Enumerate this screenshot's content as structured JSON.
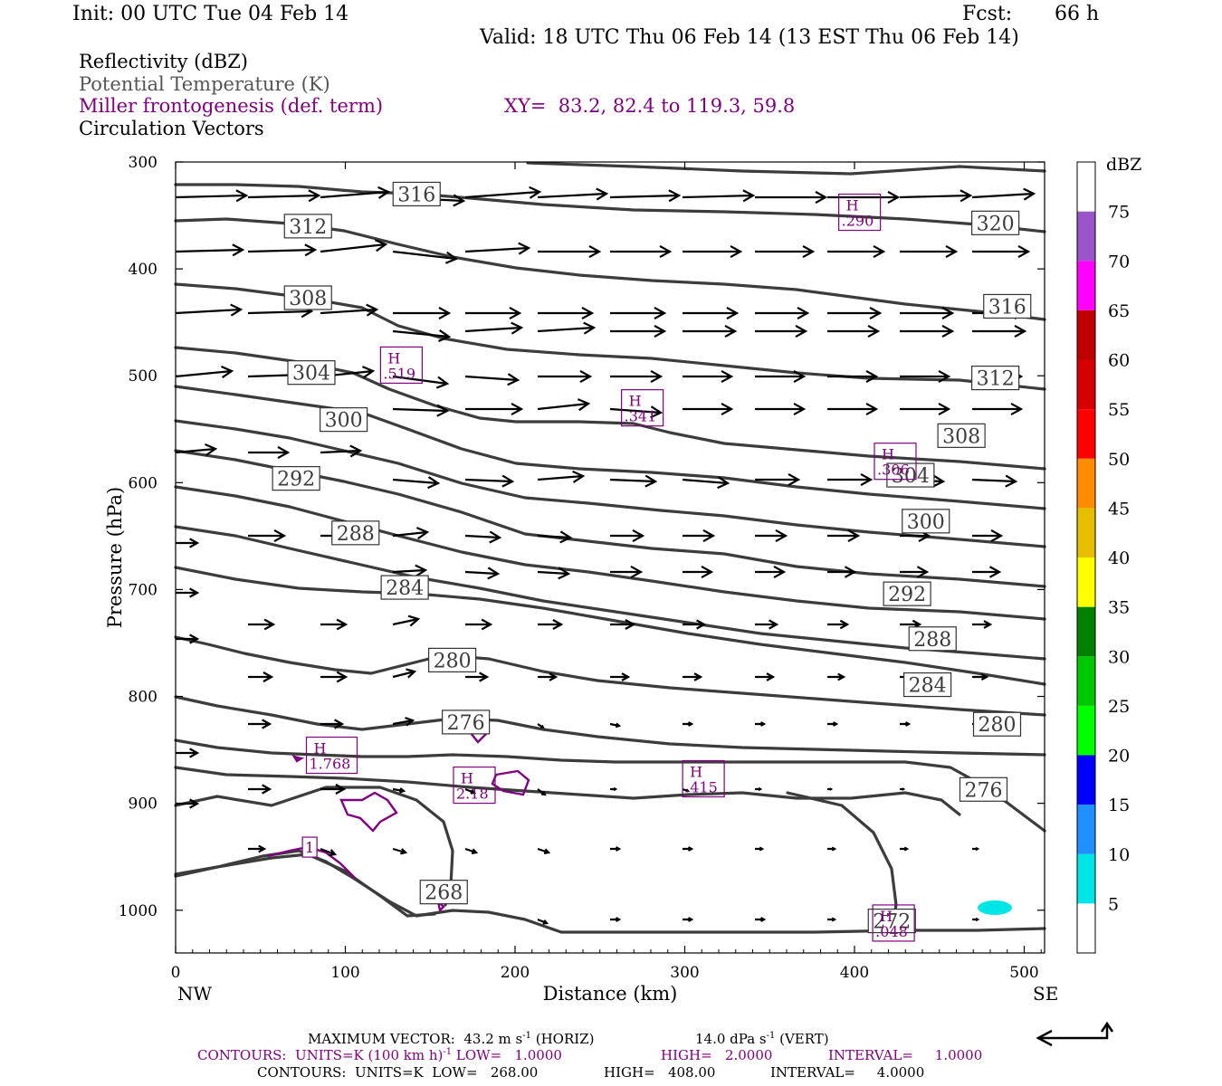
{
  "header": {
    "init": "Init: 00 UTC Tue 04 Feb 14",
    "fcst_label": "Fcst:",
    "fcst_value": "66 h",
    "valid": "Valid: 18 UTC Thu 06 Feb 14 (13 EST Thu 06 Feb 14)",
    "field1": "Reflectivity (dBZ)",
    "field2": "Potential Temperature (K)",
    "field3": "Miller frontogenesis (def. term)",
    "xy": "XY=  83.2, 82.4 to 119.3, 59.8",
    "field4": "Circulation Vectors"
  },
  "colors": {
    "theta": "#3c3c3c",
    "fronto": "#800080",
    "refl_dbz5": "#00e5e5",
    "arrow": "#000000"
  },
  "chart_data": {
    "type": "cross-section",
    "xlabel": "Distance (km)",
    "ylabel": "Pressure (hPa)",
    "xlim": [
      0,
      512
    ],
    "ylim": [
      1040,
      300
    ],
    "x_ticks": [
      0,
      100,
      200,
      300,
      400,
      500
    ],
    "y_ticks": [
      300,
      400,
      500,
      600,
      700,
      800,
      900,
      1000
    ],
    "x_left_label": "NW",
    "x_right_label": "SE",
    "theta_labels": [
      {
        "text": "316",
        "x": 142,
        "p": 330
      },
      {
        "text": "312",
        "x": 78,
        "p": 360
      },
      {
        "text": "308",
        "x": 78,
        "p": 427
      },
      {
        "text": "304",
        "x": 80,
        "p": 497
      },
      {
        "text": "300",
        "x": 99,
        "p": 541
      },
      {
        "text": "292",
        "x": 71,
        "p": 596
      },
      {
        "text": "288",
        "x": 106,
        "p": 647
      },
      {
        "text": "284",
        "x": 135,
        "p": 698
      },
      {
        "text": "280",
        "x": 163,
        "p": 766
      },
      {
        "text": "276",
        "x": 171,
        "p": 824
      },
      {
        "text": "268",
        "x": 158,
        "p": 983
      },
      {
        "text": "272",
        "x": 422,
        "p": 1010
      },
      {
        "text": "320",
        "x": 483,
        "p": 357
      },
      {
        "text": "316",
        "x": 490,
        "p": 435
      },
      {
        "text": "312",
        "x": 483,
        "p": 502
      },
      {
        "text": "308",
        "x": 463,
        "p": 556
      },
      {
        "text": "304",
        "x": 433,
        "p": 593
      },
      {
        "text": "300",
        "x": 442,
        "p": 636
      },
      {
        "text": "292",
        "x": 431,
        "p": 704
      },
      {
        "text": "288",
        "x": 446,
        "p": 746
      },
      {
        "text": "284",
        "x": 443,
        "p": 789
      },
      {
        "text": "280",
        "x": 484,
        "p": 826
      },
      {
        "text": "276",
        "x": 476,
        "p": 887
      }
    ],
    "fronto_maxima": [
      {
        "label": "H",
        "value": ".290",
        "x": 403,
        "p": 347
      },
      {
        "label": "H",
        "value": ".519",
        "x": 133,
        "p": 490
      },
      {
        "label": "H",
        "value": ".341",
        "x": 275,
        "p": 530
      },
      {
        "label": "H",
        "value": ".306",
        "x": 424,
        "p": 580
      },
      {
        "label": "H",
        "value": "1.768",
        "x": 92,
        "p": 855
      },
      {
        "label": "H",
        "value": "2.18",
        "x": 176,
        "p": 883
      },
      {
        "label": "H",
        "value": ".415",
        "x": 311,
        "p": 877
      },
      {
        "label": "H",
        "value": ".048",
        "x": 423,
        "p": 1012
      }
    ],
    "fronto_contour_label": {
      "text": "1",
      "x": 79,
      "p": 941
    },
    "colorbar": {
      "title": "dBZ",
      "levels": [
        5,
        10,
        15,
        20,
        25,
        30,
        35,
        40,
        45,
        50,
        55,
        60,
        65,
        70,
        75
      ],
      "colors": [
        "#ffffff",
        "#00e5e5",
        "#1e90ff",
        "#0000ff",
        "#00ff00",
        "#00c800",
        "#008000",
        "#ffff00",
        "#e6be00",
        "#ff8c00",
        "#ff0000",
        "#d60000",
        "#c00000",
        "#ff00ff",
        "#9955c9",
        "#ffffff"
      ]
    }
  },
  "footer": {
    "max_vector": "MAXIMUM VECTOR:  43.2 m s",
    "max_vector_sup": "-1",
    "max_vector_horiz": " (HORIZ)",
    "max_vector_vert": "14.0 dPa s",
    "max_vector_vert_sup": "-1",
    "max_vector_vert_tail": " (VERT)",
    "contours_purple": "CONTOURS:  UNITS=K (100 km h)",
    "contours_purple_sup": "-1",
    "contours_purple_low": " LOW=   1.0000",
    "contours_purple_high": "HIGH=   2.0000",
    "contours_purple_interval": "INTERVAL=     1.0000",
    "contours_black": "CONTOURS:  UNITS=K  LOW=   268.00",
    "contours_black_high": "HIGH=   408.00",
    "contours_black_interval": "INTERVAL=     4.0000"
  }
}
